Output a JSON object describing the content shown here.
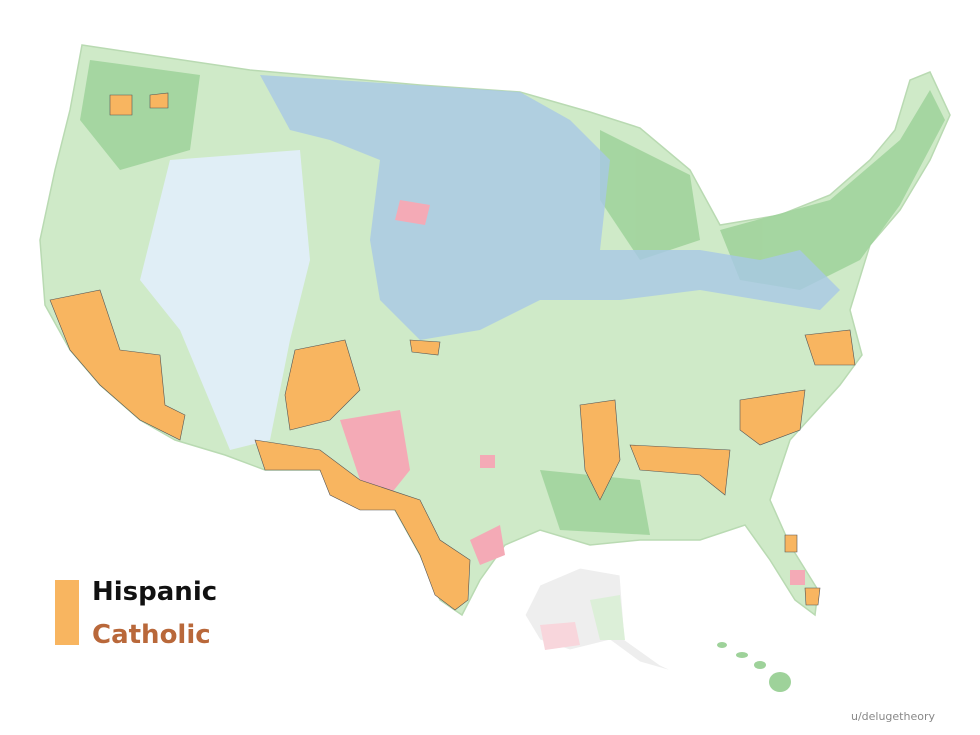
{
  "legend": {
    "items": [
      "Hispanic",
      "Catholic"
    ]
  },
  "credit": "u/delugetheory"
}
